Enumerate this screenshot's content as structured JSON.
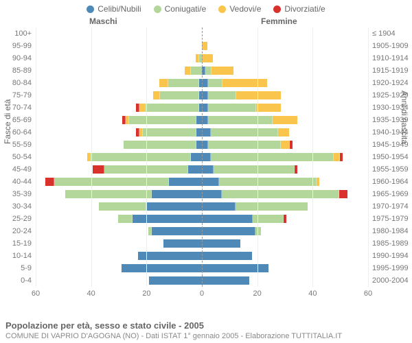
{
  "chart_type": "population-pyramid-stacked",
  "legend": [
    {
      "key": "celibi",
      "label": "Celibi/Nubili",
      "color": "#4f89b8"
    },
    {
      "key": "coniugati",
      "label": "Coniugati/e",
      "color": "#b3d69b"
    },
    {
      "key": "vedovi",
      "label": "Vedovi/e",
      "color": "#fac54d"
    },
    {
      "key": "divorziati",
      "label": "Divorziati/e",
      "color": "#d9322d"
    }
  ],
  "headers": {
    "male": "Maschi",
    "female": "Femmine"
  },
  "y_left_title": "Fasce di età",
  "y_right_title": "Anni di nascita",
  "x_ticks": [
    60,
    40,
    20,
    0,
    20,
    40,
    60
  ],
  "x_max": 60,
  "rows": [
    {
      "age": "100+",
      "birth": "≤ 1904",
      "m": {
        "celibi": 0,
        "coniugati": 0,
        "vedovi": 0,
        "divorziati": 0
      },
      "f": {
        "celibi": 0,
        "coniugati": 0,
        "vedovi": 0,
        "divorziati": 0
      }
    },
    {
      "age": "95-99",
      "birth": "1905-1909",
      "m": {
        "celibi": 0,
        "coniugati": 0,
        "vedovi": 0,
        "divorziati": 0
      },
      "f": {
        "celibi": 0,
        "coniugati": 0,
        "vedovi": 2,
        "divorziati": 0
      }
    },
    {
      "age": "90-94",
      "birth": "1910-1914",
      "m": {
        "celibi": 0,
        "coniugati": 1,
        "vedovi": 1,
        "divorziati": 0
      },
      "f": {
        "celibi": 0,
        "coniugati": 0,
        "vedovi": 4,
        "divorziati": 0
      }
    },
    {
      "age": "85-89",
      "birth": "1915-1919",
      "m": {
        "celibi": 0,
        "coniugati": 4,
        "vedovi": 2,
        "divorziati": 0
      },
      "f": {
        "celibi": 1,
        "coniugati": 2,
        "vedovi": 8,
        "divorziati": 0
      }
    },
    {
      "age": "80-84",
      "birth": "1920-1924",
      "m": {
        "celibi": 1,
        "coniugati": 11,
        "vedovi": 3,
        "divorziati": 0
      },
      "f": {
        "celibi": 2,
        "coniugati": 5,
        "vedovi": 16,
        "divorziati": 0
      }
    },
    {
      "age": "75-79",
      "birth": "1925-1929",
      "m": {
        "celibi": 1,
        "coniugati": 14,
        "vedovi": 2,
        "divorziati": 0
      },
      "f": {
        "celibi": 2,
        "coniugati": 10,
        "vedovi": 16,
        "divorziati": 0
      }
    },
    {
      "age": "70-74",
      "birth": "1930-1934",
      "m": {
        "celibi": 1,
        "coniugati": 19,
        "vedovi": 2,
        "divorziati": 1
      },
      "f": {
        "celibi": 2,
        "coniugati": 17,
        "vedovi": 9,
        "divorziati": 0
      }
    },
    {
      "age": "65-69",
      "birth": "1935-1939",
      "m": {
        "celibi": 2,
        "coniugati": 24,
        "vedovi": 1,
        "divorziati": 1
      },
      "f": {
        "celibi": 2,
        "coniugati": 23,
        "vedovi": 9,
        "divorziati": 0
      }
    },
    {
      "age": "60-64",
      "birth": "1940-1944",
      "m": {
        "celibi": 2,
        "coniugati": 19,
        "vedovi": 1,
        "divorziati": 1
      },
      "f": {
        "celibi": 3,
        "coniugati": 24,
        "vedovi": 4,
        "divorziati": 0
      }
    },
    {
      "age": "55-59",
      "birth": "1945-1949",
      "m": {
        "celibi": 2,
        "coniugati": 26,
        "vedovi": 0,
        "divorziati": 0
      },
      "f": {
        "celibi": 2,
        "coniugati": 26,
        "vedovi": 3,
        "divorziati": 1
      }
    },
    {
      "age": "50-54",
      "birth": "1950-1954",
      "m": {
        "celibi": 4,
        "coniugati": 36,
        "vedovi": 1,
        "divorziati": 0
      },
      "f": {
        "celibi": 3,
        "coniugati": 44,
        "vedovi": 2,
        "divorziati": 1
      }
    },
    {
      "age": "45-49",
      "birth": "1955-1959",
      "m": {
        "celibi": 5,
        "coniugati": 30,
        "vedovi": 0,
        "divorziati": 4
      },
      "f": {
        "celibi": 4,
        "coniugati": 29,
        "vedovi": 0,
        "divorziati": 1
      }
    },
    {
      "age": "40-44",
      "birth": "1960-1964",
      "m": {
        "celibi": 12,
        "coniugati": 41,
        "vedovi": 0,
        "divorziati": 3
      },
      "f": {
        "celibi": 6,
        "coniugati": 35,
        "vedovi": 1,
        "divorziati": 0
      }
    },
    {
      "age": "35-39",
      "birth": "1965-1969",
      "m": {
        "celibi": 18,
        "coniugati": 31,
        "vedovi": 0,
        "divorziati": 0
      },
      "f": {
        "celibi": 7,
        "coniugati": 42,
        "vedovi": 0,
        "divorziati": 3
      }
    },
    {
      "age": "30-34",
      "birth": "1970-1974",
      "m": {
        "celibi": 20,
        "coniugati": 17,
        "vedovi": 0,
        "divorziati": 0
      },
      "f": {
        "celibi": 12,
        "coniugati": 26,
        "vedovi": 0,
        "divorziati": 0
      }
    },
    {
      "age": "25-29",
      "birth": "1975-1979",
      "m": {
        "celibi": 25,
        "coniugati": 5,
        "vedovi": 0,
        "divorziati": 0
      },
      "f": {
        "celibi": 18,
        "coniugati": 11,
        "vedovi": 0,
        "divorziati": 1
      }
    },
    {
      "age": "20-24",
      "birth": "1980-1984",
      "m": {
        "celibi": 18,
        "coniugati": 1,
        "vedovi": 0,
        "divorziati": 0
      },
      "f": {
        "celibi": 19,
        "coniugati": 2,
        "vedovi": 0,
        "divorziati": 0
      }
    },
    {
      "age": "15-19",
      "birth": "1985-1989",
      "m": {
        "celibi": 14,
        "coniugati": 0,
        "vedovi": 0,
        "divorziati": 0
      },
      "f": {
        "celibi": 14,
        "coniugati": 0,
        "vedovi": 0,
        "divorziati": 0
      }
    },
    {
      "age": "10-14",
      "birth": "1990-1994",
      "m": {
        "celibi": 23,
        "coniugati": 0,
        "vedovi": 0,
        "divorziati": 0
      },
      "f": {
        "celibi": 18,
        "coniugati": 0,
        "vedovi": 0,
        "divorziati": 0
      }
    },
    {
      "age": "5-9",
      "birth": "1995-1999",
      "m": {
        "celibi": 29,
        "coniugati": 0,
        "vedovi": 0,
        "divorziati": 0
      },
      "f": {
        "celibi": 24,
        "coniugati": 0,
        "vedovi": 0,
        "divorziati": 0
      }
    },
    {
      "age": "0-4",
      "birth": "2000-2004",
      "m": {
        "celibi": 19,
        "coniugati": 0,
        "vedovi": 0,
        "divorziati": 0
      },
      "f": {
        "celibi": 17,
        "coniugati": 0,
        "vedovi": 0,
        "divorziati": 0
      }
    }
  ],
  "title": "Popolazione per età, sesso e stato civile - 2005",
  "subtitle": "COMUNE DI VAPRIO D'AGOGNA (NO) - Dati ISTAT 1° gennaio 2005 - Elaborazione TUTTITALIA.IT",
  "styling": {
    "background": "#ffffff",
    "grid_color": "#eeeeee",
    "center_line": "#999999",
    "font_size": 11,
    "label_color": "#777777"
  }
}
